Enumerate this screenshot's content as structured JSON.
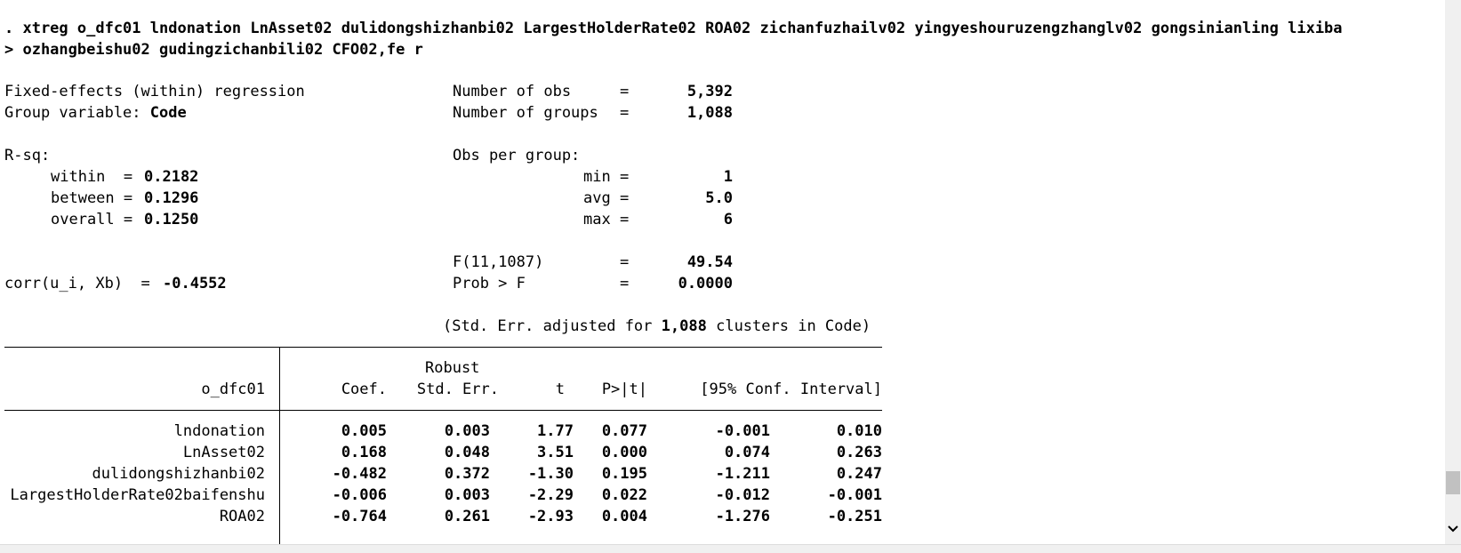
{
  "command": {
    "line1": ". xtreg o_dfc01 lndonation LnAsset02 dulidongshizhanbi02 LargestHolderRate02 ROA02 zichanfuzhailv02 yingyeshouruzengzhanglv02 gongsinianling lixiba",
    "line2": "> ozhangbeishu02 gudingzichanbili02 CFO02,fe r"
  },
  "header": {
    "model": "Fixed-effects (within) regression",
    "group_label": "Group variable:",
    "group_var": "Code",
    "nobs_label": "Number of obs",
    "nobs_eq": "=",
    "nobs": "5,392",
    "ngroups_label": "Number of groups",
    "ngroups_eq": "=",
    "ngroups": "1,088",
    "rsq_label": "R-sq:",
    "within_label": "within  =",
    "within": "0.2182",
    "between_label": "between =",
    "between": "0.1296",
    "overall_label": "overall =",
    "overall": "0.1250",
    "obs_per_group": "Obs per group:",
    "min_label": "min =",
    "min": "1",
    "avg_label": "avg =",
    "avg": "5.0",
    "max_label": "max =",
    "max": "6",
    "f_label": "F(11,1087)",
    "f_eq": "=",
    "f": "49.54",
    "prob_label": "Prob > F",
    "prob_eq": "=",
    "prob": "0.0000",
    "corr_label": "corr(u_i, Xb)  =",
    "corr": "-0.4552",
    "stderr_pre": "(Std. Err. adjusted for",
    "clusters": "1,088",
    "stderr_post": "clusters in Code)"
  },
  "table": {
    "robust": "Robust",
    "depvar": "o_dfc01",
    "columns": [
      "Coef.",
      "Std. Err.",
      "t",
      "P>|t|",
      "[95% Conf. Interval]"
    ],
    "rows": [
      {
        "var": "lndonation",
        "coef": "0.005",
        "se": "0.003",
        "t": "1.77",
        "p": "0.077",
        "lo": "-0.001",
        "hi": "0.010"
      },
      {
        "var": "LnAsset02",
        "coef": "0.168",
        "se": "0.048",
        "t": "3.51",
        "p": "0.000",
        "lo": "0.074",
        "hi": "0.263"
      },
      {
        "var": "dulidongshizhanbi02",
        "coef": "-0.482",
        "se": "0.372",
        "t": "-1.30",
        "p": "0.195",
        "lo": "-1.211",
        "hi": "0.247"
      },
      {
        "var": "LargestHolderRate02baifenshu",
        "coef": "-0.006",
        "se": "0.003",
        "t": "-2.29",
        "p": "0.022",
        "lo": "-0.012",
        "hi": "-0.001"
      },
      {
        "var": "ROA02",
        "coef": "-0.764",
        "se": "0.261",
        "t": "-2.93",
        "p": "0.004",
        "lo": "-1.276",
        "hi": "-0.251"
      }
    ]
  },
  "icons": {
    "scroll_down": "chevron-down-icon"
  }
}
